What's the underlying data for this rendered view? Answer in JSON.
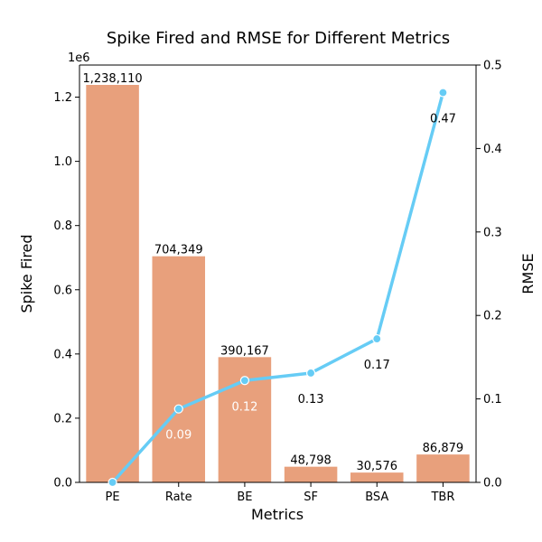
{
  "chart_data": {
    "type": "bar",
    "title": "Spike Fired and RMSE for Different Metrics",
    "xlabel": "Metrics",
    "ylabel": "Spike Fired",
    "y2label": "RMSE",
    "y_offset_text": "1e6",
    "categories": [
      "PE",
      "Rate",
      "BE",
      "SF",
      "BSA",
      "TBR"
    ],
    "ylim": [
      0,
      1300000
    ],
    "y_ticks": [
      0.0,
      0.2,
      0.4,
      0.6,
      0.8,
      1.0,
      1.2
    ],
    "y_tick_labels": [
      "0.0",
      "0.2",
      "0.4",
      "0.6",
      "0.8",
      "1.0",
      "1.2"
    ],
    "y2lim": [
      0,
      0.5
    ],
    "y2_ticks": [
      0.0,
      0.1,
      0.2,
      0.3,
      0.4,
      0.5
    ],
    "y2_tick_labels": [
      "0.0",
      "0.1",
      "0.2",
      "0.3",
      "0.4",
      "0.5"
    ],
    "series": [
      {
        "type": "bar",
        "axis": "left",
        "color": "#E8A07C",
        "values": [
          1238110,
          704349,
          390167,
          48798,
          30576,
          86879
        ],
        "data_labels": [
          "1,238,110",
          "704,349",
          "390,167",
          "48,798",
          "30,576",
          "86,879"
        ]
      },
      {
        "type": "line",
        "axis": "right",
        "color": "#66CCF5",
        "values": [
          0.0,
          0.088,
          0.122,
          0.131,
          0.172,
          0.467
        ],
        "data_labels": [
          "",
          "0.09",
          "0.12",
          "0.13",
          "0.17",
          "0.47"
        ],
        "label_colors": [
          "#000000",
          "#ffffff",
          "#ffffff",
          "#000000",
          "#000000",
          "#000000"
        ]
      }
    ],
    "grid": false,
    "legend": "none"
  }
}
